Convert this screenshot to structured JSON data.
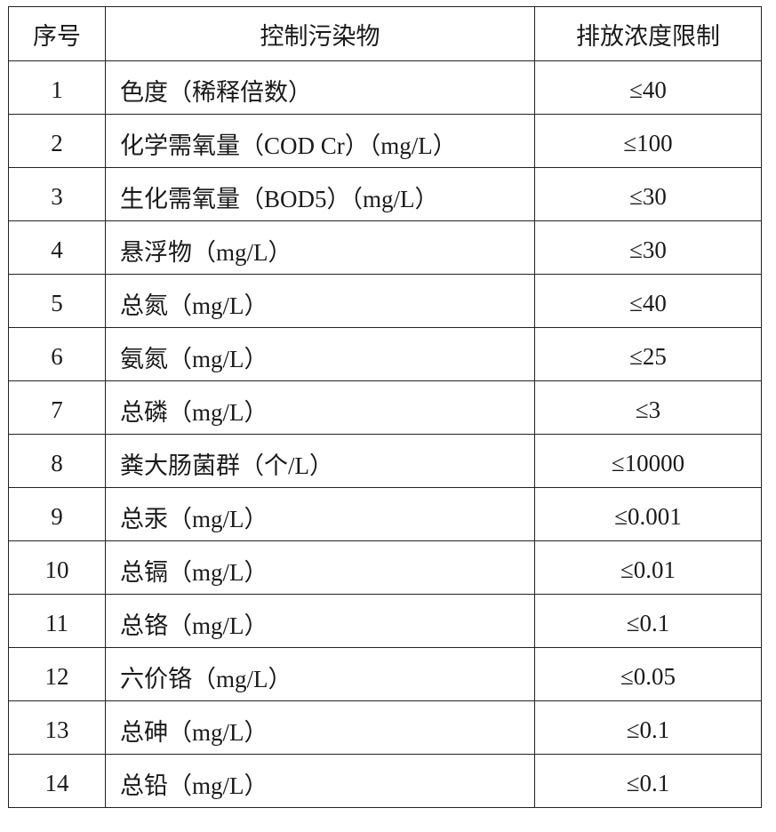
{
  "table": {
    "headers": [
      "序号",
      "控制污染物",
      "排放浓度限制"
    ],
    "rows": [
      {
        "no": "1",
        "pollutant": "色度（稀释倍数）",
        "limit": "≤40"
      },
      {
        "no": "2",
        "pollutant": "化学需氧量（COD Cr）（mg/L）",
        "limit": "≤100"
      },
      {
        "no": "3",
        "pollutant": "生化需氧量（BOD5）（mg/L）",
        "limit": "≤30"
      },
      {
        "no": "4",
        "pollutant": "悬浮物（mg/L）",
        "limit": "≤30"
      },
      {
        "no": "5",
        "pollutant": "总氮（mg/L）",
        "limit": "≤40"
      },
      {
        "no": "6",
        "pollutant": "氨氮（mg/L）",
        "limit": "≤25"
      },
      {
        "no": "7",
        "pollutant": "总磷（mg/L）",
        "limit": "≤3"
      },
      {
        "no": "8",
        "pollutant": "粪大肠菌群（个/L）",
        "limit": "≤10000"
      },
      {
        "no": "9",
        "pollutant": "总汞（mg/L）",
        "limit": "≤0.001"
      },
      {
        "no": "10",
        "pollutant": "总镉（mg/L）",
        "limit": "≤0.01"
      },
      {
        "no": "11",
        "pollutant": "总铬（mg/L）",
        "limit": "≤0.1"
      },
      {
        "no": "12",
        "pollutant": "六价铬（mg/L）",
        "limit": "≤0.05"
      },
      {
        "no": "13",
        "pollutant": "总砷（mg/L）",
        "limit": "≤0.1"
      },
      {
        "no": "14",
        "pollutant": "总铅（mg/L）",
        "limit": "≤0.1"
      }
    ]
  }
}
